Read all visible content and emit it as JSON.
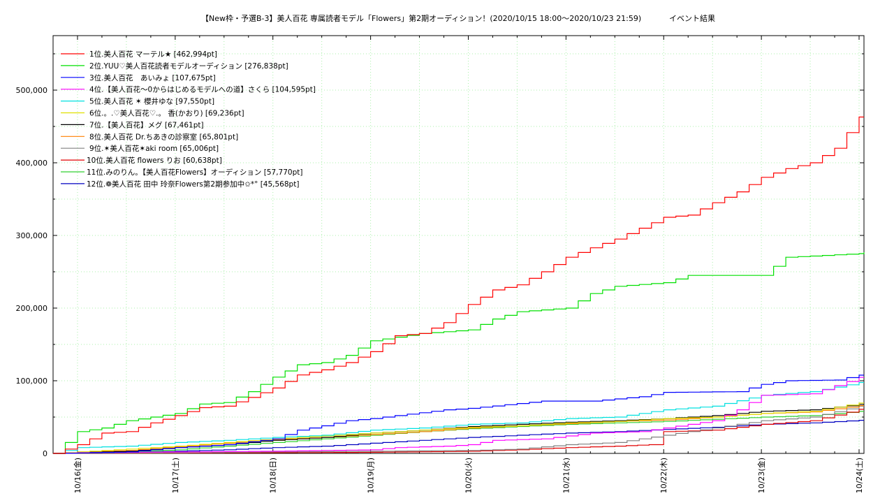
{
  "chart_data": {
    "type": "line",
    "title": "【New枠・予選B-3】美人百花 専属読者モデル「Flowers」第2期オーディション！(2020/10/15 18:00〜2020/10/23 21:59)",
    "subtitle": "イベント結果",
    "xlabel": "",
    "ylabel": "",
    "x_tick_labels": [
      "10/16(金)",
      "10/17(土)",
      "10/18(日)",
      "10/19(月)",
      "10/20(火)",
      "10/21(水)",
      "10/22(木)",
      "10/23(金)",
      "10/24(土)"
    ],
    "y_tick_labels": [
      "0",
      "100,000",
      "200,000",
      "300,000",
      "400,000",
      "500,000"
    ],
    "xlim_days": [
      -0.25,
      8.05
    ],
    "ylim": [
      0,
      575000
    ],
    "grid": true,
    "legend_position": "top-left",
    "series": [
      {
        "name": "1位.美人百花 マーテル★ [462,994pt]",
        "color": "#ff0000",
        "points": [
          [
            -0.25,
            0
          ],
          [
            0,
            12000
          ],
          [
            0.25,
            28000
          ],
          [
            0.5,
            30000
          ],
          [
            0.75,
            42000
          ],
          [
            1,
            52000
          ],
          [
            1.25,
            63000
          ],
          [
            1.5,
            65000
          ],
          [
            1.75,
            77000
          ],
          [
            2,
            90000
          ],
          [
            2.25,
            108000
          ],
          [
            2.5,
            115000
          ],
          [
            2.75,
            125000
          ],
          [
            3,
            140000
          ],
          [
            3.25,
            162000
          ],
          [
            3.5,
            165000
          ],
          [
            3.75,
            180000
          ],
          [
            4,
            205000
          ],
          [
            4.25,
            225000
          ],
          [
            4.5,
            232000
          ],
          [
            4.75,
            250000
          ],
          [
            5,
            270000
          ],
          [
            5.25,
            283000
          ],
          [
            5.5,
            295000
          ],
          [
            5.75,
            310000
          ],
          [
            6,
            325000
          ],
          [
            6.25,
            328000
          ],
          [
            6.5,
            345000
          ],
          [
            6.75,
            360000
          ],
          [
            7,
            380000
          ],
          [
            7.25,
            392000
          ],
          [
            7.5,
            400000
          ],
          [
            7.75,
            420000
          ],
          [
            8,
            462994
          ],
          [
            8.05,
            462994
          ]
        ]
      },
      {
        "name": "2位.YUU♡美人百花読者モデルオーディション [276,838pt]",
        "color": "#00e000",
        "points": [
          [
            -0.25,
            0
          ],
          [
            0,
            30000
          ],
          [
            0.25,
            35000
          ],
          [
            0.5,
            45000
          ],
          [
            1,
            55000
          ],
          [
            1.25,
            68000
          ],
          [
            1.5,
            70000
          ],
          [
            1.75,
            85000
          ],
          [
            2,
            105000
          ],
          [
            2.25,
            122000
          ],
          [
            2.5,
            125000
          ],
          [
            2.75,
            135000
          ],
          [
            3,
            155000
          ],
          [
            3.25,
            160000
          ],
          [
            3.5,
            165000
          ],
          [
            4,
            170000
          ],
          [
            4.25,
            185000
          ],
          [
            4.5,
            195000
          ],
          [
            5,
            200000
          ],
          [
            5.25,
            220000
          ],
          [
            5.5,
            230000
          ],
          [
            6,
            235000
          ],
          [
            6.25,
            245000
          ],
          [
            7,
            245000
          ],
          [
            7.25,
            270000
          ],
          [
            8,
            275000
          ],
          [
            8.05,
            276838
          ]
        ]
      },
      {
        "name": "3位.美人百花　あいみょ [107,675pt]",
        "color": "#0000ff",
        "points": [
          [
            -0.25,
            0
          ],
          [
            0.5,
            2000
          ],
          [
            1,
            8000
          ],
          [
            1.5,
            12000
          ],
          [
            2,
            20000
          ],
          [
            2.25,
            32000
          ],
          [
            2.5,
            38000
          ],
          [
            2.75,
            45000
          ],
          [
            3,
            48000
          ],
          [
            3.75,
            60000
          ],
          [
            4,
            62000
          ],
          [
            4.75,
            72000
          ],
          [
            5.25,
            72000
          ],
          [
            5.75,
            78000
          ],
          [
            6,
            84000
          ],
          [
            6.75,
            85000
          ],
          [
            7,
            95000
          ],
          [
            7.25,
            100000
          ],
          [
            7.75,
            101000
          ],
          [
            8,
            107675
          ],
          [
            8.05,
            107675
          ]
        ]
      },
      {
        "name": "4位.【美人百花〜0からはじめるモデルへの道】さくら [104,595pt]",
        "color": "#ff00ff",
        "points": [
          [
            -0.25,
            0
          ],
          [
            0,
            1000
          ],
          [
            1,
            2000
          ],
          [
            2,
            3000
          ],
          [
            3,
            5000
          ],
          [
            3.25,
            8000
          ],
          [
            3.75,
            10000
          ],
          [
            4,
            12000
          ],
          [
            4.25,
            18000
          ],
          [
            4.75,
            20000
          ],
          [
            5.25,
            28000
          ],
          [
            5.75,
            30000
          ],
          [
            6,
            35000
          ],
          [
            6.5,
            45000
          ],
          [
            6.75,
            60000
          ],
          [
            7,
            80000
          ],
          [
            7.5,
            82000
          ],
          [
            8,
            104595
          ],
          [
            8.05,
            104595
          ]
        ]
      },
      {
        "name": "5位.美人百花 ✶ 櫻井ゆな [97,550pt]",
        "color": "#00e0e0",
        "points": [
          [
            -0.25,
            0
          ],
          [
            0,
            8000
          ],
          [
            0.5,
            10000
          ],
          [
            1,
            15000
          ],
          [
            1.5,
            18000
          ],
          [
            2,
            22000
          ],
          [
            2.5,
            25000
          ],
          [
            3,
            32000
          ],
          [
            3.5,
            35000
          ],
          [
            4,
            40000
          ],
          [
            4.5,
            42000
          ],
          [
            5,
            48000
          ],
          [
            5.5,
            50000
          ],
          [
            6,
            60000
          ],
          [
            6.5,
            65000
          ],
          [
            7,
            80000
          ],
          [
            7.5,
            85000
          ],
          [
            8,
            97550
          ],
          [
            8.05,
            97550
          ]
        ]
      },
      {
        "name": "6位.。.♡美人百花♡.。 香(かおり) [69,236pt]",
        "color": "#e0e000",
        "points": [
          [
            -0.25,
            0
          ],
          [
            0,
            2000
          ],
          [
            1,
            10000
          ],
          [
            1.5,
            15000
          ],
          [
            2,
            20000
          ],
          [
            2.5,
            24000
          ],
          [
            3,
            28000
          ],
          [
            3.5,
            32000
          ],
          [
            4,
            36000
          ],
          [
            4.5,
            38000
          ],
          [
            5,
            42000
          ],
          [
            5.5,
            44000
          ],
          [
            6,
            48000
          ],
          [
            6.5,
            50000
          ],
          [
            7,
            55000
          ],
          [
            7.5,
            58000
          ],
          [
            8,
            69236
          ],
          [
            8.05,
            69236
          ]
        ]
      },
      {
        "name": "7位.【美人百花】メグ [67,461pt]",
        "color": "#000000",
        "points": [
          [
            -0.25,
            0
          ],
          [
            0,
            1000
          ],
          [
            0.5,
            3000
          ],
          [
            1,
            8000
          ],
          [
            1.5,
            12000
          ],
          [
            2,
            18000
          ],
          [
            2.5,
            22000
          ],
          [
            3,
            28000
          ],
          [
            3.5,
            32000
          ],
          [
            4,
            37000
          ],
          [
            4.5,
            40000
          ],
          [
            5,
            43000
          ],
          [
            5.5,
            45000
          ],
          [
            6,
            48000
          ],
          [
            6.5,
            52000
          ],
          [
            7,
            58000
          ],
          [
            7.5,
            60000
          ],
          [
            8,
            67461
          ],
          [
            8.05,
            67461
          ]
        ]
      },
      {
        "name": "8位.美人百花 Dr.ちあきの診察室 [65,801pt]",
        "color": "#ff8000",
        "points": [
          [
            -0.25,
            0
          ],
          [
            0,
            2000
          ],
          [
            0.5,
            4000
          ],
          [
            1,
            9000
          ],
          [
            1.5,
            14000
          ],
          [
            2,
            19000
          ],
          [
            2.5,
            22000
          ],
          [
            3,
            26000
          ],
          [
            3.5,
            30000
          ],
          [
            4,
            35000
          ],
          [
            4.5,
            38000
          ],
          [
            5,
            41000
          ],
          [
            5.5,
            44000
          ],
          [
            6,
            46000
          ],
          [
            6.5,
            50000
          ],
          [
            7,
            55000
          ],
          [
            7.5,
            57000
          ],
          [
            8,
            65801
          ],
          [
            8.05,
            65801
          ]
        ]
      },
      {
        "name": "9位.✶美人百花✶aki room [65,006pt]",
        "color": "#808080",
        "points": [
          [
            -0.25,
            0
          ],
          [
            0,
            500
          ],
          [
            1,
            1000
          ],
          [
            2,
            2000
          ],
          [
            3,
            3000
          ],
          [
            4,
            4000
          ],
          [
            4.5,
            6000
          ],
          [
            5,
            12000
          ],
          [
            5.5,
            15000
          ],
          [
            6,
            25000
          ],
          [
            6.5,
            35000
          ],
          [
            7,
            45000
          ],
          [
            7.5,
            50000
          ],
          [
            8,
            65006
          ],
          [
            8.05,
            65006
          ]
        ]
      },
      {
        "name": "10位.美人百花 flowers りお [60,638pt]",
        "color": "#e00000",
        "points": [
          [
            -0.25,
            0
          ],
          [
            0,
            300
          ],
          [
            1,
            500
          ],
          [
            2,
            1000
          ],
          [
            3,
            1500
          ],
          [
            4,
            3000
          ],
          [
            4.5,
            5000
          ],
          [
            5,
            8000
          ],
          [
            5.5,
            10000
          ],
          [
            5.85,
            12000
          ],
          [
            6,
            30000
          ],
          [
            6.5,
            32000
          ],
          [
            7,
            40000
          ],
          [
            7.5,
            45000
          ],
          [
            8,
            60638
          ],
          [
            8.05,
            60638
          ]
        ]
      },
      {
        "name": "11位.みのりん。【美人百花Flowers】オーディション [57,770pt]",
        "color": "#30d030",
        "points": [
          [
            -0.25,
            0
          ],
          [
            0,
            1000
          ],
          [
            0.5,
            2000
          ],
          [
            1,
            5000
          ],
          [
            1.5,
            10000
          ],
          [
            2,
            15000
          ],
          [
            2.5,
            20000
          ],
          [
            3,
            25000
          ],
          [
            3.5,
            30000
          ],
          [
            4,
            34000
          ],
          [
            4.5,
            37000
          ],
          [
            5,
            40000
          ],
          [
            5.5,
            42000
          ],
          [
            6,
            44000
          ],
          [
            6.5,
            47000
          ],
          [
            7,
            50000
          ],
          [
            7.5,
            52000
          ],
          [
            8,
            57770
          ],
          [
            8.05,
            57770
          ]
        ]
      },
      {
        "name": "12位.❁美人百花 田中 玲奈Flowers第2期参加中✩*° [45,568pt]",
        "color": "#0000c0",
        "points": [
          [
            -0.25,
            0
          ],
          [
            0,
            500
          ],
          [
            0.5,
            1000
          ],
          [
            1,
            3000
          ],
          [
            1.5,
            5000
          ],
          [
            2,
            8000
          ],
          [
            2.5,
            10000
          ],
          [
            3,
            14000
          ],
          [
            3.5,
            18000
          ],
          [
            4,
            22000
          ],
          [
            4.5,
            25000
          ],
          [
            5,
            28000
          ],
          [
            5.5,
            30000
          ],
          [
            6,
            33000
          ],
          [
            6.5,
            36000
          ],
          [
            7,
            40000
          ],
          [
            7.5,
            42000
          ],
          [
            8,
            45568
          ],
          [
            8.05,
            45568
          ]
        ]
      }
    ]
  }
}
